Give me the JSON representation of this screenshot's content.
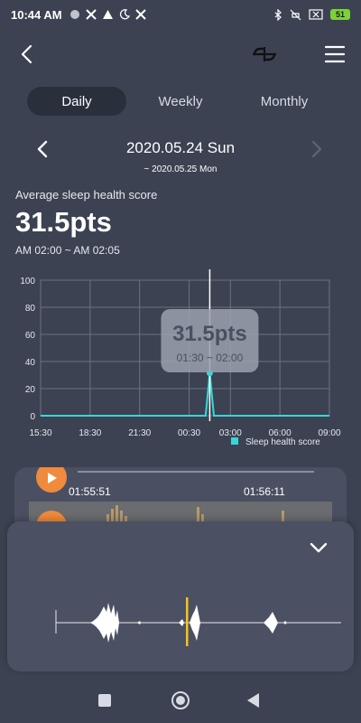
{
  "status_bar": {
    "time": "10:44 AM",
    "left_icons": [
      "circle-icon",
      "app-icon",
      "warning-icon",
      "moon-icon",
      "app-icon"
    ],
    "right_icons": [
      "bluetooth-icon",
      "mute-icon",
      "sim-icon",
      "battery-icon"
    ],
    "battery_level": "51"
  },
  "app_bar": {
    "back_icon": "chevron-left-icon",
    "logo_icon": "link-logo-icon",
    "menu_icon": "hamburger-menu-icon"
  },
  "tabs": [
    {
      "label": "Daily",
      "active": true
    },
    {
      "label": "Weekly",
      "active": false
    },
    {
      "label": "Monthly",
      "active": false
    }
  ],
  "date_nav": {
    "main": "2020.05.24 Sun",
    "sub": "~ 2020.05.25 Mon"
  },
  "score": {
    "label": "Average sleep health score",
    "value": "31.5pts",
    "range": "AM 02:00 ~ AM 02:05"
  },
  "chart_data": {
    "type": "line",
    "x": [
      "15:30",
      "18:30",
      "21:30",
      "00:30",
      "01:30",
      "01:45",
      "02:00",
      "03:00",
      "06:00",
      "09:00"
    ],
    "x_ticks": [
      "15:30",
      "18:30",
      "21:30",
      "00:30",
      "03:00",
      "06:00",
      "09:00"
    ],
    "series": [
      {
        "name": "Sleep health score",
        "values": [
          0,
          0,
          0,
          0,
          0,
          31.5,
          0,
          0,
          0,
          0
        ]
      }
    ],
    "ylim": [
      0,
      100
    ],
    "y_ticks": [
      0,
      20,
      40,
      60,
      80,
      100
    ],
    "grid": true,
    "legend": "bottom-right",
    "tooltip": {
      "value": "31.5pts",
      "range": "01:30 ~ 02:00"
    },
    "colors": {
      "line": "#35d8d8",
      "grid": "#6c7282",
      "cursor": "#ffffff"
    }
  },
  "player": {
    "time_a": "01:55:51",
    "time_b": "01:56:11",
    "accent": "#f08a3c"
  },
  "sheet": {
    "collapse_icon": "chevron-down-icon",
    "playhead_color": "#f5c518"
  },
  "nav": {
    "recent_icon": "square-icon",
    "home_icon": "circle-home-icon",
    "back_icon": "triangle-back-icon"
  }
}
